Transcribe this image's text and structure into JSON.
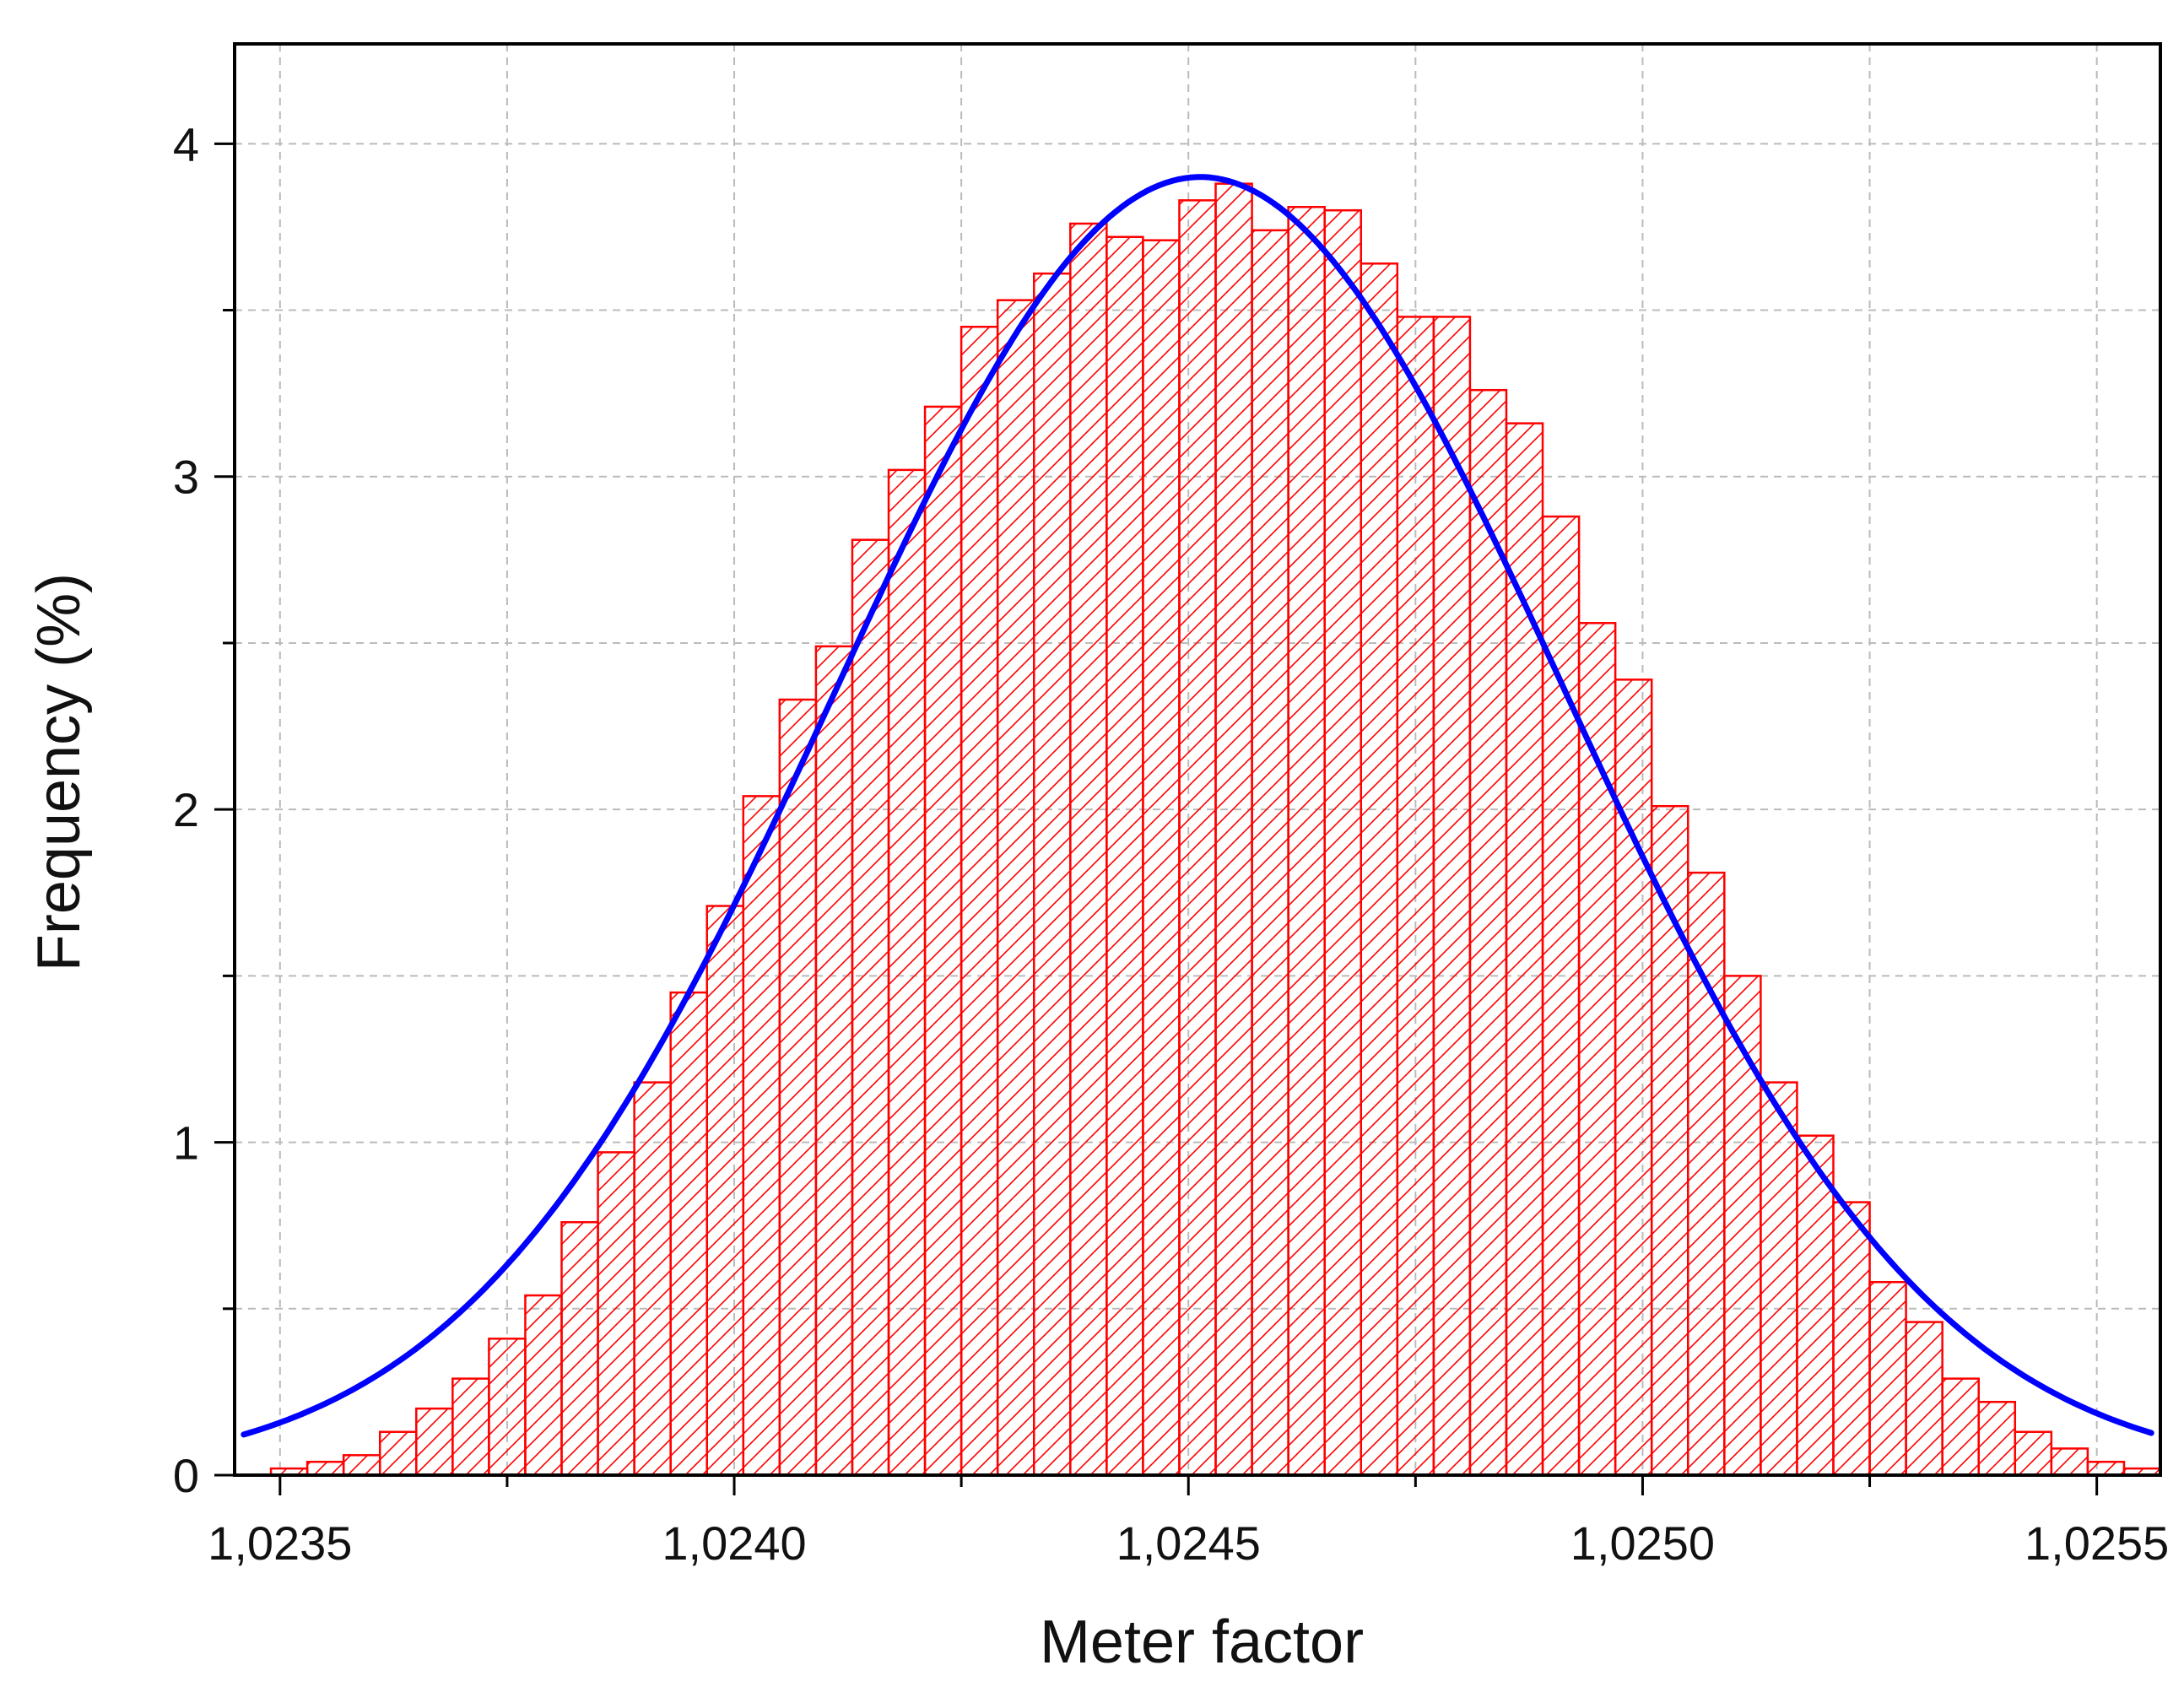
{
  "chart_data": {
    "type": "bar",
    "xlabel": "Meter factor",
    "ylabel": "Frequency (%)",
    "xlim": [
      1.02345,
      1.02557
    ],
    "ylim": [
      0,
      4.3
    ],
    "xticks": [
      "1,0235",
      "1,0240",
      "1,0245",
      "1,0250",
      "1,0255"
    ],
    "xtick_values": [
      1.0235,
      1.024,
      1.0245,
      1.025,
      1.0255
    ],
    "yticks": [
      "0",
      "1",
      "2",
      "3",
      "4"
    ],
    "ytick_values": [
      0,
      1,
      2,
      3,
      4
    ],
    "grid": true,
    "bin_width": 4e-05,
    "bins_start": 1.02349,
    "values": [
      0.02,
      0.04,
      0.06,
      0.13,
      0.2,
      0.29,
      0.41,
      0.54,
      0.76,
      0.97,
      1.18,
      1.45,
      1.71,
      2.04,
      2.33,
      2.49,
      2.81,
      3.02,
      3.21,
      3.45,
      3.53,
      3.61,
      3.76,
      3.72,
      3.71,
      3.83,
      3.88,
      3.74,
      3.81,
      3.8,
      3.64,
      3.48,
      3.48,
      3.26,
      3.16,
      2.88,
      2.56,
      2.39,
      2.01,
      1.81,
      1.5,
      1.18,
      1.02,
      0.82,
      0.58,
      0.46,
      0.29,
      0.22,
      0.13,
      0.08,
      0.04,
      0.02
    ],
    "fit_curve": {
      "type": "normal",
      "mean": 1.024513,
      "peak": 3.9,
      "sigma": 0.0004,
      "x_range": [
        1.02346,
        1.02556
      ]
    },
    "colors": {
      "bars": "#ff0000",
      "fit_line": "#0000ff",
      "grid": "#bbbbbb",
      "axes": "#000000"
    }
  }
}
